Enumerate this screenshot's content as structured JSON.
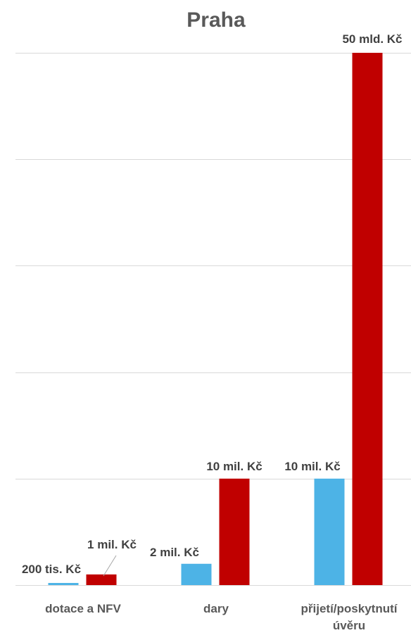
{
  "chart_data": {
    "type": "bar",
    "title": "Praha",
    "xlabel": "",
    "ylabel": "",
    "categories": [
      "dotace a NFV",
      "dary",
      "přijetí/poskytnutí úvěru"
    ],
    "category_label_lines": [
      [
        "dotace a NFV"
      ],
      [
        "dary"
      ],
      [
        "přijetí/poskytnutí",
        "úvěru"
      ]
    ],
    "series": [
      {
        "color": "#4DB3E6",
        "values": [
          0.2,
          2,
          10
        ],
        "labels": [
          "200 tis. Kč",
          "2 mil. Kč",
          "10 mil. Kč"
        ]
      },
      {
        "color": "#C00000",
        "values": [
          1,
          10,
          50
        ],
        "labels": [
          "1 mil. Kč",
          "10 mil. Kč",
          "50 mld. Kč"
        ]
      }
    ],
    "note": "Bars are drawn on a truncated value scale; data labels carry the printed values.",
    "ylim": [
      0,
      50
    ],
    "gridlines": [
      0,
      10,
      20,
      30,
      40,
      50
    ],
    "grid": true,
    "legend": "none",
    "axis_line_color": "#D9D9D9",
    "gridline_color": "#D9D9D9",
    "leader_line_color": "#A6A6A6"
  }
}
